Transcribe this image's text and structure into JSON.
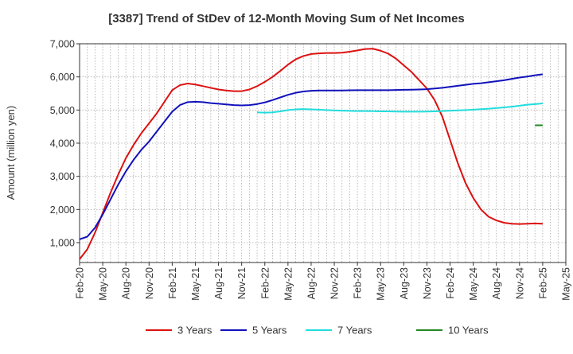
{
  "chart_data": {
    "type": "line",
    "title": "[3387]  Trend of StDev of 12-Month Moving Sum of Net Incomes",
    "xlabel": "",
    "ylabel": "Amount (million yen)",
    "ylim": [
      400,
      7000
    ],
    "xlim": [
      "2020-02",
      "2025-05"
    ],
    "x_ticks": [
      "Feb-20",
      "May-20",
      "Aug-20",
      "Nov-20",
      "Feb-21",
      "May-21",
      "Aug-21",
      "Nov-21",
      "Feb-22",
      "May-22",
      "Aug-22",
      "Nov-22",
      "Feb-23",
      "May-23",
      "Aug-23",
      "Nov-23",
      "Feb-24",
      "May-24",
      "Aug-24",
      "Nov-24",
      "Feb-25",
      "May-25"
    ],
    "y_ticks": [
      1000,
      2000,
      3000,
      4000,
      5000,
      6000,
      7000
    ],
    "y_tick_labels": [
      "1,000",
      "2,000",
      "3,000",
      "4,000",
      "5,000",
      "6,000",
      "7,000"
    ],
    "grid": true,
    "legend_position": "bottom",
    "series": [
      {
        "name": "3 Years",
        "color": "#dd1111",
        "points": [
          [
            "2020-02",
            500
          ],
          [
            "2020-03",
            800
          ],
          [
            "2020-04",
            1300
          ],
          [
            "2020-05",
            1900
          ],
          [
            "2020-06",
            2500
          ],
          [
            "2020-07",
            3050
          ],
          [
            "2020-08",
            3550
          ],
          [
            "2020-09",
            3950
          ],
          [
            "2020-10",
            4300
          ],
          [
            "2020-11",
            4600
          ],
          [
            "2020-12",
            4900
          ],
          [
            "2021-01",
            5250
          ],
          [
            "2021-02",
            5600
          ],
          [
            "2021-03",
            5750
          ],
          [
            "2021-04",
            5800
          ],
          [
            "2021-05",
            5770
          ],
          [
            "2021-06",
            5720
          ],
          [
            "2021-07",
            5670
          ],
          [
            "2021-08",
            5620
          ],
          [
            "2021-09",
            5590
          ],
          [
            "2021-10",
            5570
          ],
          [
            "2021-11",
            5570
          ],
          [
            "2021-12",
            5620
          ],
          [
            "2022-01",
            5720
          ],
          [
            "2022-02",
            5850
          ],
          [
            "2022-03",
            6000
          ],
          [
            "2022-04",
            6180
          ],
          [
            "2022-05",
            6370
          ],
          [
            "2022-06",
            6530
          ],
          [
            "2022-07",
            6630
          ],
          [
            "2022-08",
            6690
          ],
          [
            "2022-09",
            6710
          ],
          [
            "2022-10",
            6720
          ],
          [
            "2022-11",
            6720
          ],
          [
            "2022-12",
            6730
          ],
          [
            "2023-01",
            6760
          ],
          [
            "2023-02",
            6800
          ],
          [
            "2023-03",
            6840
          ],
          [
            "2023-04",
            6850
          ],
          [
            "2023-05",
            6790
          ],
          [
            "2023-06",
            6700
          ],
          [
            "2023-07",
            6550
          ],
          [
            "2023-08",
            6350
          ],
          [
            "2023-09",
            6150
          ],
          [
            "2023-10",
            5900
          ],
          [
            "2023-11",
            5650
          ],
          [
            "2023-12",
            5300
          ],
          [
            "2024-01",
            4800
          ],
          [
            "2024-02",
            4100
          ],
          [
            "2024-03",
            3400
          ],
          [
            "2024-04",
            2800
          ],
          [
            "2024-05",
            2350
          ],
          [
            "2024-06",
            2000
          ],
          [
            "2024-07",
            1780
          ],
          [
            "2024-08",
            1670
          ],
          [
            "2024-09",
            1600
          ],
          [
            "2024-10",
            1570
          ],
          [
            "2024-11",
            1560
          ],
          [
            "2024-12",
            1570
          ],
          [
            "2025-01",
            1580
          ],
          [
            "2025-02",
            1570
          ]
        ]
      },
      {
        "name": "5 Years",
        "color": "#1111bb",
        "points": [
          [
            "2020-02",
            1100
          ],
          [
            "2020-03",
            1180
          ],
          [
            "2020-04",
            1450
          ],
          [
            "2020-05",
            1850
          ],
          [
            "2020-06",
            2300
          ],
          [
            "2020-07",
            2750
          ],
          [
            "2020-08",
            3150
          ],
          [
            "2020-09",
            3500
          ],
          [
            "2020-10",
            3800
          ],
          [
            "2020-11",
            4050
          ],
          [
            "2020-12",
            4350
          ],
          [
            "2021-01",
            4650
          ],
          [
            "2021-02",
            4950
          ],
          [
            "2021-03",
            5150
          ],
          [
            "2021-04",
            5240
          ],
          [
            "2021-05",
            5250
          ],
          [
            "2021-06",
            5240
          ],
          [
            "2021-07",
            5210
          ],
          [
            "2021-08",
            5190
          ],
          [
            "2021-09",
            5170
          ],
          [
            "2021-10",
            5150
          ],
          [
            "2021-11",
            5140
          ],
          [
            "2021-12",
            5150
          ],
          [
            "2022-01",
            5180
          ],
          [
            "2022-02",
            5230
          ],
          [
            "2022-03",
            5300
          ],
          [
            "2022-04",
            5380
          ],
          [
            "2022-05",
            5460
          ],
          [
            "2022-06",
            5520
          ],
          [
            "2022-07",
            5560
          ],
          [
            "2022-08",
            5580
          ],
          [
            "2022-09",
            5590
          ],
          [
            "2022-10",
            5590
          ],
          [
            "2022-11",
            5590
          ],
          [
            "2022-12",
            5590
          ],
          [
            "2023-01",
            5595
          ],
          [
            "2023-02",
            5600
          ],
          [
            "2023-03",
            5600
          ],
          [
            "2023-04",
            5600
          ],
          [
            "2023-05",
            5600
          ],
          [
            "2023-06",
            5600
          ],
          [
            "2023-07",
            5605
          ],
          [
            "2023-08",
            5610
          ],
          [
            "2023-09",
            5615
          ],
          [
            "2023-10",
            5620
          ],
          [
            "2023-11",
            5630
          ],
          [
            "2023-12",
            5650
          ],
          [
            "2024-01",
            5670
          ],
          [
            "2024-02",
            5700
          ],
          [
            "2024-03",
            5730
          ],
          [
            "2024-04",
            5760
          ],
          [
            "2024-05",
            5790
          ],
          [
            "2024-06",
            5810
          ],
          [
            "2024-07",
            5840
          ],
          [
            "2024-08",
            5870
          ],
          [
            "2024-09",
            5900
          ],
          [
            "2024-10",
            5940
          ],
          [
            "2024-11",
            5980
          ],
          [
            "2024-12",
            6010
          ],
          [
            "2025-01",
            6050
          ],
          [
            "2025-02",
            6080
          ]
        ]
      },
      {
        "name": "7 Years",
        "color": "#22dddd",
        "points": [
          [
            "2022-01",
            4930
          ],
          [
            "2022-02",
            4920
          ],
          [
            "2022-03",
            4930
          ],
          [
            "2022-04",
            4960
          ],
          [
            "2022-05",
            5000
          ],
          [
            "2022-06",
            5020
          ],
          [
            "2022-07",
            5030
          ],
          [
            "2022-08",
            5020
          ],
          [
            "2022-09",
            5010
          ],
          [
            "2022-10",
            5000
          ],
          [
            "2022-11",
            4990
          ],
          [
            "2022-12",
            4980
          ],
          [
            "2023-01",
            4975
          ],
          [
            "2023-02",
            4970
          ],
          [
            "2023-03",
            4970
          ],
          [
            "2023-04",
            4965
          ],
          [
            "2023-05",
            4960
          ],
          [
            "2023-06",
            4960
          ],
          [
            "2023-07",
            4955
          ],
          [
            "2023-08",
            4950
          ],
          [
            "2023-09",
            4950
          ],
          [
            "2023-10",
            4950
          ],
          [
            "2023-11",
            4955
          ],
          [
            "2023-12",
            4960
          ],
          [
            "2024-01",
            4970
          ],
          [
            "2024-02",
            4980
          ],
          [
            "2024-03",
            4990
          ],
          [
            "2024-04",
            5000
          ],
          [
            "2024-05",
            5010
          ],
          [
            "2024-06",
            5025
          ],
          [
            "2024-07",
            5040
          ],
          [
            "2024-08",
            5060
          ],
          [
            "2024-09",
            5080
          ],
          [
            "2024-10",
            5100
          ],
          [
            "2024-11",
            5130
          ],
          [
            "2024-12",
            5160
          ],
          [
            "2025-01",
            5180
          ],
          [
            "2025-02",
            5200
          ]
        ]
      },
      {
        "name": "10 Years",
        "color": "#228822",
        "points": [
          [
            "2025-01",
            4540
          ],
          [
            "2025-02",
            4540
          ]
        ]
      }
    ]
  }
}
